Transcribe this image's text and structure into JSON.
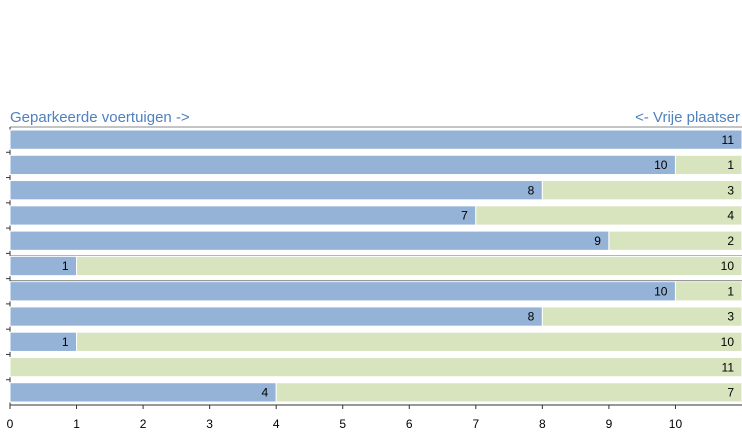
{
  "chart_data": {
    "type": "bar",
    "orientation": "horizontal",
    "stacked": true,
    "categories": [
      null,
      null,
      null,
      null,
      null,
      null,
      null,
      null,
      null,
      null,
      null
    ],
    "series": [
      {
        "name": "Geparkeerde voertuigen ->",
        "color": "#95b3d7",
        "values": [
          11,
          10,
          8,
          7,
          9,
          1,
          10,
          8,
          1,
          0,
          4
        ]
      },
      {
        "name": "<- Vrije plaatser",
        "color": "#d7e4bd",
        "values": [
          0,
          1,
          3,
          4,
          2,
          10,
          1,
          3,
          10,
          11,
          7
        ]
      }
    ],
    "xlim": [
      0,
      11
    ],
    "xticks": [
      0,
      1,
      2,
      3,
      4,
      5,
      6,
      7,
      8,
      9,
      10
    ]
  }
}
